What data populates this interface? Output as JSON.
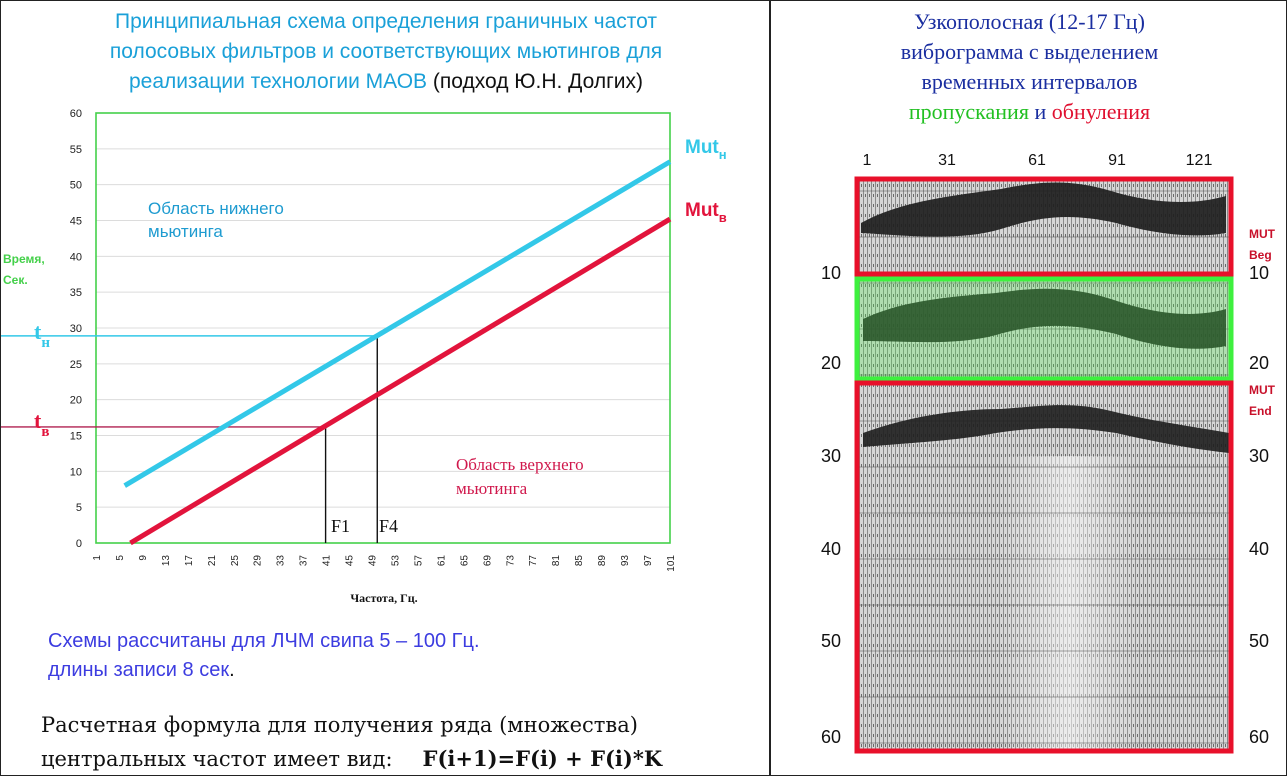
{
  "left": {
    "title_line1": "Принципиальная схема определения граничных частот",
    "title_line2": "полосовых фильтров и соответствующих мьютингов для",
    "title_line3_a": "реализации технологии МАОВ",
    "title_line3_b": " (подход Ю.Н. Долгих)",
    "area_lower_1": "Область нижнего",
    "area_lower_2": "мьютинга",
    "area_upper_1": "Область  верхнего",
    "area_upper_2": "мьютинга",
    "note_line1": "Схемы рассчитаны для ЛЧМ свипа 5 – 100 Гц.",
    "note_line2_a": "длины записи 8 сек",
    "note_line2_b": ".",
    "formula_line1": "Расчетная формула для получения ряда (множества)",
    "formula_line2": "центральных частот имеет вид:",
    "formula_expr": "F(i+1)=F(i) + F(i)*K"
  },
  "chart_data": {
    "type": "line",
    "xlabel": "Частота, Гц.",
    "ylabel_1": "Время,",
    "ylabel_2": "Сек.",
    "x_ticks": [
      1,
      5,
      9,
      13,
      17,
      21,
      25,
      29,
      33,
      37,
      41,
      45,
      49,
      53,
      57,
      61,
      65,
      69,
      73,
      77,
      81,
      85,
      89,
      93,
      97,
      101
    ],
    "y_ticks": [
      0,
      5,
      10,
      15,
      20,
      25,
      30,
      35,
      40,
      45,
      50,
      55,
      60
    ],
    "xlim": [
      1,
      101
    ],
    "ylim": [
      0,
      60
    ],
    "series": [
      {
        "name": "Mut",
        "sub": "н",
        "color": "#33c8e8",
        "x": [
          6,
          101
        ],
        "y": [
          8,
          53.2
        ]
      },
      {
        "name": "Mut",
        "sub": "в",
        "color": "#e2143c",
        "x": [
          7,
          101
        ],
        "y": [
          0,
          45.2
        ]
      }
    ],
    "markers": {
      "t_upper": {
        "label": "t",
        "sub": "н",
        "y": 28.9,
        "x": 50
      },
      "t_lower": {
        "label": "t",
        "sub": "в",
        "y": 16.2,
        "x": 41
      }
    },
    "f_labels": [
      {
        "label": "F1",
        "x": 41
      },
      {
        "label": "F4",
        "x": 50
      }
    ]
  },
  "right": {
    "title_line1": "Узкополосная (12-17 Гц)",
    "title_line2": "виброграмма с выделением",
    "title_line3": "временных интервалов",
    "title_green": "пропускания",
    "title_and": " и ",
    "title_red": "обнуления",
    "trace_ticks": [
      "1",
      "31",
      "61",
      "91",
      "121"
    ],
    "time_ticks_left": [
      "10",
      "20",
      "30",
      "40",
      "50",
      "60"
    ],
    "time_ticks_right": [
      "10",
      "20",
      "30",
      "40",
      "50",
      "60"
    ],
    "mut_beg_1": "MUT",
    "mut_beg_2": "Beg",
    "mut_end_1": "MUT",
    "mut_end_2": "End"
  }
}
